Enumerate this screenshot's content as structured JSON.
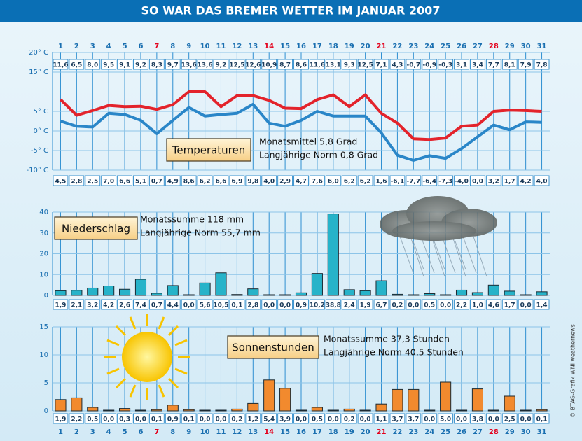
{
  "title": "SO WAR DAS BREMER WETTER IM JANUAR 2007",
  "credit": "© BTAG-Grafik   WNI weathernews",
  "chart_data": [
    {
      "type": "line",
      "categories": [
        "1",
        "2",
        "3",
        "4",
        "5",
        "6",
        "7",
        "8",
        "9",
        "10",
        "11",
        "12",
        "13",
        "14",
        "15",
        "16",
        "17",
        "18",
        "19",
        "20",
        "21",
        "22",
        "23",
        "24",
        "25",
        "26",
        "27",
        "28",
        "29",
        "30",
        "31"
      ],
      "series": [
        {
          "color": "#e3232b",
          "values": [
            8,
            4,
            5.2,
            6.5,
            6.2,
            6.3,
            5.5,
            6.7,
            10,
            10,
            6.2,
            9,
            9,
            7.8,
            5.8,
            5.7,
            8,
            9.2,
            6.2,
            9.2,
            4.5,
            2,
            -2,
            -2.2,
            -1.8,
            1.2,
            1.5,
            5,
            5.3,
            5.2,
            5
          ]
        },
        {
          "color": "#2a86c8",
          "values": [
            2.5,
            1.2,
            1,
            4.5,
            4.2,
            2.7,
            -0.7,
            2.7,
            6,
            3.8,
            4.2,
            4.5,
            6.8,
            2,
            1.2,
            2.7,
            5,
            3.8,
            3.8,
            3.8,
            -0.5,
            -6.2,
            -7.5,
            -6.3,
            -7,
            -4.5,
            -1.5,
            1.5,
            0.3,
            2.3,
            2.2
          ]
        }
      ],
      "ylim": [
        -10,
        20
      ],
      "yticks": [
        {
          "value": 20,
          "label": "20° C"
        },
        {
          "value": 15,
          "label": "15° C"
        },
        {
          "value": 5,
          "label": "5° C"
        },
        {
          "value": 0,
          "label": "0° C"
        },
        {
          "value": -5,
          "label": "-5° C"
        },
        {
          "value": -10,
          "label": "-10° C"
        }
      ],
      "grid": true,
      "badge": "Temperaturen",
      "notes": [
        "Monatsmittel 5,8 Grad",
        "Langjährige Norm 0,8 Grad"
      ],
      "max_row": {
        "values": [
          11.6,
          6.5,
          8.0,
          9.5,
          9.1,
          9.2,
          8.3,
          9.7,
          13.6,
          13.6,
          9.2,
          12.5,
          12.6,
          10.9,
          8.7,
          8.6,
          11.6,
          13.1,
          9.3,
          12.5,
          7.1,
          4.3,
          -0.7,
          -0.9,
          -0.3,
          3.1,
          3.4,
          7.7,
          8.1,
          7.9,
          7.8
        ],
        "value_labels": [
          "11,6",
          "6,5",
          "8,0",
          "9,5",
          "9,1",
          "9,2",
          "8,3",
          "9,7",
          "13,6",
          "13,6",
          "9,2",
          "12,5",
          "12,6",
          "10,9",
          "8,7",
          "8,6",
          "11,6",
          "13,1",
          "9,3",
          "12,5",
          "7,1",
          "4,3",
          "-0,7",
          "-0,9",
          "-0,3",
          "3,1",
          "3,4",
          "7,7",
          "8,1",
          "7,9",
          "7,8"
        ]
      },
      "min_row": {
        "values": [
          4.5,
          2.8,
          2.5,
          7.0,
          6.6,
          5.1,
          0.7,
          4.9,
          8.6,
          6.2,
          6.6,
          6.9,
          9.8,
          4.0,
          2.9,
          4.7,
          7.6,
          6.0,
          6.2,
          6.2,
          1.6,
          -6.1,
          -7.7,
          -6.4,
          -7.3,
          -4.0,
          0.0,
          3.2,
          1.7,
          4.2,
          4.0
        ],
        "value_labels": [
          "4,5",
          "2,8",
          "2,5",
          "7,0",
          "6,6",
          "5,1",
          "0,7",
          "4,9",
          "8,6",
          "6,2",
          "6,6",
          "6,9",
          "9,8",
          "4,0",
          "2,9",
          "4,7",
          "7,6",
          "6,0",
          "6,2",
          "6,2",
          "1,6",
          "-6,1",
          "-7,7",
          "-6,4",
          "-7,3",
          "-4,0",
          "0,0",
          "3,2",
          "1,7",
          "4,2",
          "4,0"
        ]
      }
    },
    {
      "type": "bar",
      "values": [
        1.9,
        2.1,
        3.2,
        4.2,
        2.6,
        7.4,
        0.7,
        4.4,
        0.0,
        5.6,
        10.5,
        0.1,
        2.8,
        0.0,
        0.0,
        0.9,
        10.2,
        38.8,
        2.4,
        1.9,
        6.7,
        0.2,
        0.0,
        0.5,
        0.0,
        2.2,
        1.0,
        4.6,
        1.7,
        0.0,
        1.4
      ],
      "value_labels": [
        "1,9",
        "2,1",
        "3,2",
        "4,2",
        "2,6",
        "7,4",
        "0,7",
        "4,4",
        "0,0",
        "5,6",
        "10,5",
        "0,1",
        "2,8",
        "0,0",
        "0,0",
        "0,9",
        "10,2",
        "38,8",
        "2,4",
        "1,9",
        "6,7",
        "0,2",
        "0,0",
        "0,5",
        "0,0",
        "2,2",
        "1,0",
        "4,6",
        "1,7",
        "0,0",
        "1,4"
      ],
      "color": "#27b3c9",
      "ylim": [
        0,
        40
      ],
      "yticks": [
        0,
        10,
        20,
        30,
        40
      ],
      "grid": true,
      "badge": "Niederschlag",
      "notes": [
        "Monatssumme 118 mm",
        "Langjährige Norm 55,7 mm"
      ]
    },
    {
      "type": "bar",
      "categories": [
        "1",
        "2",
        "3",
        "4",
        "5",
        "6",
        "7",
        "8",
        "9",
        "10",
        "11",
        "12",
        "13",
        "14",
        "15",
        "16",
        "17",
        "18",
        "19",
        "20",
        "21",
        "22",
        "23",
        "24",
        "25",
        "26",
        "27",
        "28",
        "29",
        "30",
        "31"
      ],
      "values": [
        1.9,
        2.2,
        0.5,
        0.0,
        0.3,
        0.0,
        0.1,
        0.9,
        0.1,
        0.0,
        0.0,
        0.2,
        1.2,
        5.4,
        3.9,
        0.0,
        0.5,
        0.0,
        0.2,
        0.0,
        1.1,
        3.7,
        3.7,
        0.0,
        5.0,
        0.0,
        3.8,
        0.0,
        2.5,
        0.0,
        0.1
      ],
      "value_labels": [
        "1,9",
        "2,2",
        "0,5",
        "0,0",
        "0,3",
        "0,0",
        "0,1",
        "0,9",
        "0,1",
        "0,0",
        "0,0",
        "0,2",
        "1,2",
        "5,4",
        "3,9",
        "0,0",
        "0,5",
        "0,0",
        "0,2",
        "0,0",
        "1,1",
        "3,7",
        "3,7",
        "0,0",
        "5,0",
        "0,0",
        "3,8",
        "0,0",
        "2,5",
        "0,0",
        "0,1"
      ],
      "color": "#f28a2e",
      "ylim": [
        0,
        15
      ],
      "yticks": [
        0,
        5,
        10,
        15
      ],
      "grid": true,
      "badge": "Sonnenstunden",
      "notes": [
        "Monatssumme 37,3 Stunden",
        "Langjährige Norm 40,5 Stunden"
      ]
    }
  ]
}
